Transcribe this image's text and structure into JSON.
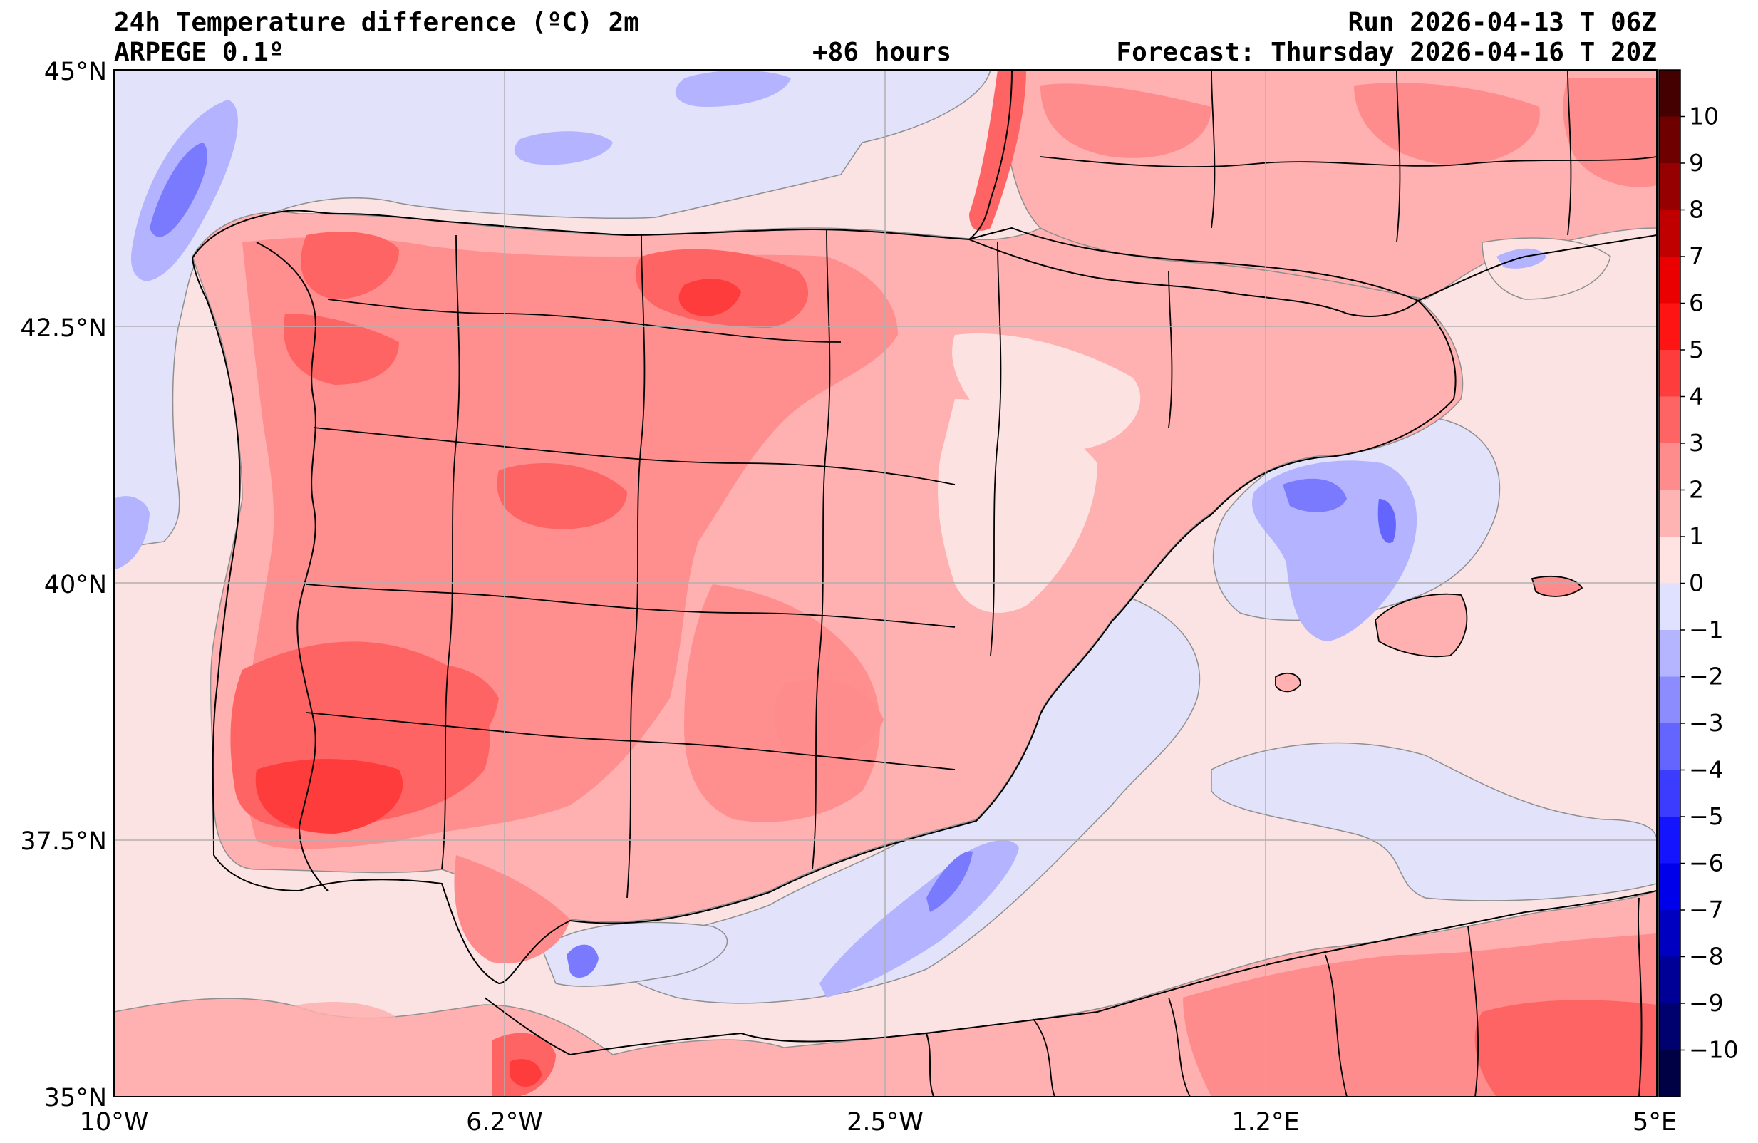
{
  "header": {
    "title_left": "24h Temperature difference (ºC) 2m",
    "model": "ARPEGE 0.1º",
    "lead_time": "+86 hours",
    "run": "Run 2026-04-13 T 06Z",
    "forecast": "Forecast: Thursday 2026-04-16 T 20Z"
  },
  "map": {
    "lat_range": [
      35,
      45
    ],
    "lon_range": [
      -10,
      5
    ],
    "lat_ticks": [
      {
        "value": 45,
        "label": "45°N"
      },
      {
        "value": 42.5,
        "label": "42.5°N"
      },
      {
        "value": 40,
        "label": "40°N"
      },
      {
        "value": 37.5,
        "label": "37.5°N"
      },
      {
        "value": 35,
        "label": "35°N"
      }
    ],
    "lon_ticks": [
      {
        "value": -10,
        "label": "10°W"
      },
      {
        "value": -6.2,
        "label": "6.2°W"
      },
      {
        "value": -2.5,
        "label": "2.5°W"
      },
      {
        "value": 1.2,
        "label": "1.2°E"
      },
      {
        "value": 5,
        "label": "5°E"
      }
    ],
    "grid": true,
    "colors": {
      "sea_background": "#fbe3e3",
      "grid": "#b0b0b0",
      "border": "#000000"
    }
  },
  "colorbar": {
    "levels": [
      -11,
      -10,
      -9,
      -8,
      -7,
      -6,
      -5,
      -4,
      -3,
      -2,
      -1,
      0,
      1,
      2,
      3,
      4,
      5,
      6,
      7,
      8,
      9,
      10,
      11
    ],
    "labels": [
      "10",
      "9",
      "8",
      "7",
      "6",
      "5",
      "4",
      "3",
      "2",
      "1",
      "0",
      "−1",
      "−2",
      "−3",
      "−4",
      "−5",
      "−6",
      "−7",
      "−8",
      "−9",
      "−10"
    ],
    "label_values": [
      10,
      9,
      8,
      7,
      6,
      5,
      4,
      3,
      2,
      1,
      0,
      -1,
      -2,
      -3,
      -4,
      -5,
      -6,
      -7,
      -8,
      -9,
      -10
    ],
    "colors": [
      "#000044",
      "#00006e",
      "#000096",
      "#0000c0",
      "#0000ea",
      "#1414ff",
      "#3c3cff",
      "#6464ff",
      "#8c8cff",
      "#b4b4ff",
      "#e0e0ff",
      "#ffe2e2",
      "#ffb4b4",
      "#ff8c8c",
      "#ff6464",
      "#ff3c3c",
      "#ff1414",
      "#ea0000",
      "#c00000",
      "#960000",
      "#6e0000",
      "#440000"
    ]
  }
}
